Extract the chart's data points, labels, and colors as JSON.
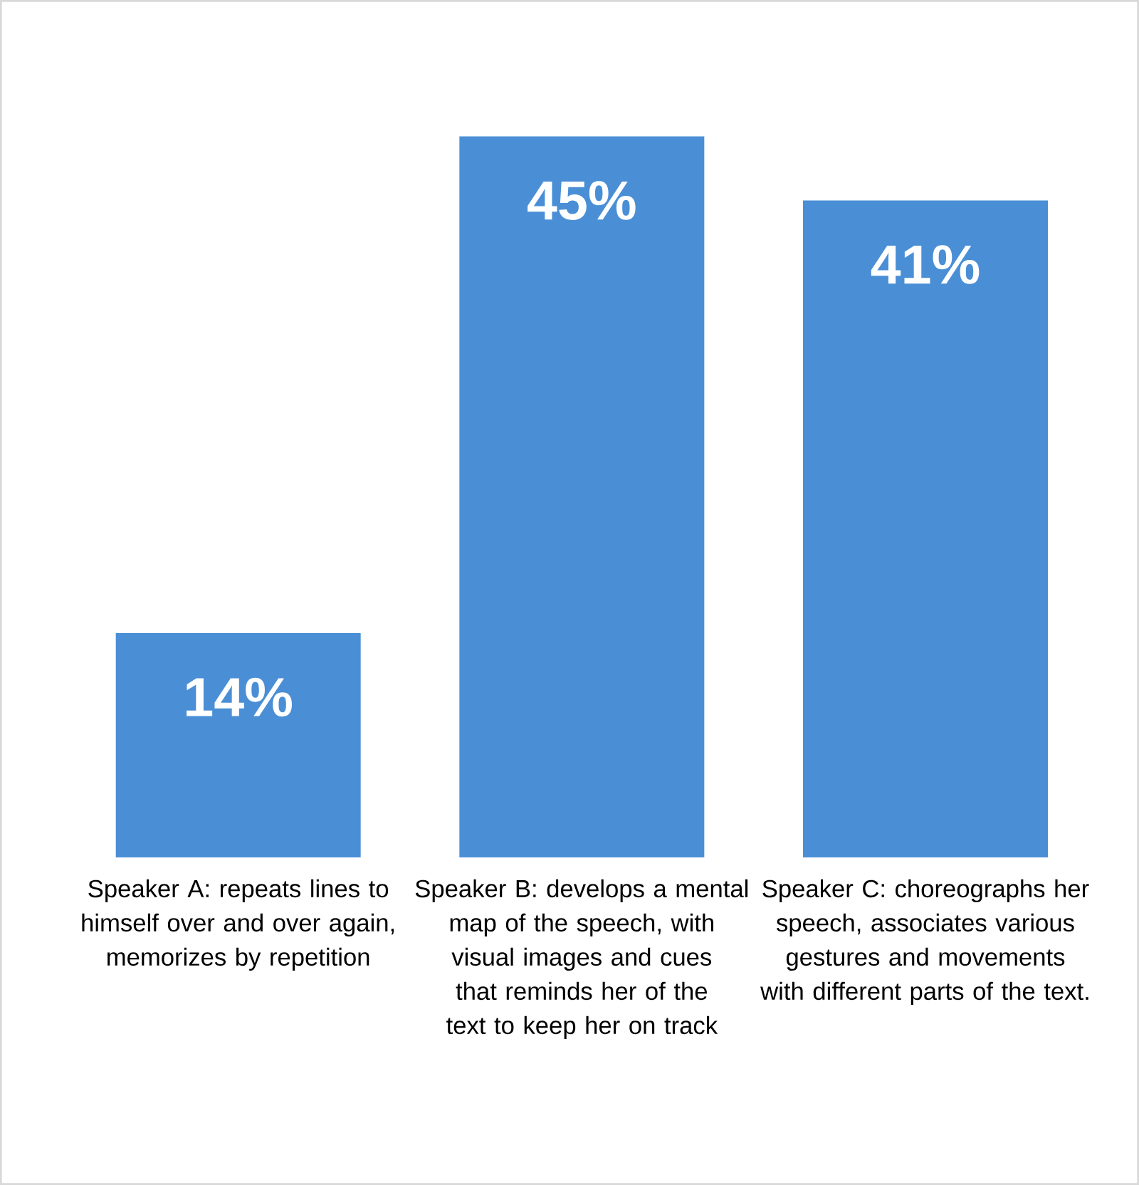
{
  "chart_data": {
    "type": "bar",
    "categories": [
      "Speaker A: repeats lines to himself over and over again, memorizes by repetition",
      "Speaker B: develops a mental map of the speech, with visual images and cues that reminds her of the text to keep her on track",
      "Speaker C: choreographs her speech, associates various gestures and movements with different parts of the text."
    ],
    "values": [
      14,
      45,
      41
    ],
    "value_labels": [
      "14%",
      "45%",
      "41%"
    ],
    "color": "#4a8fd6"
  }
}
